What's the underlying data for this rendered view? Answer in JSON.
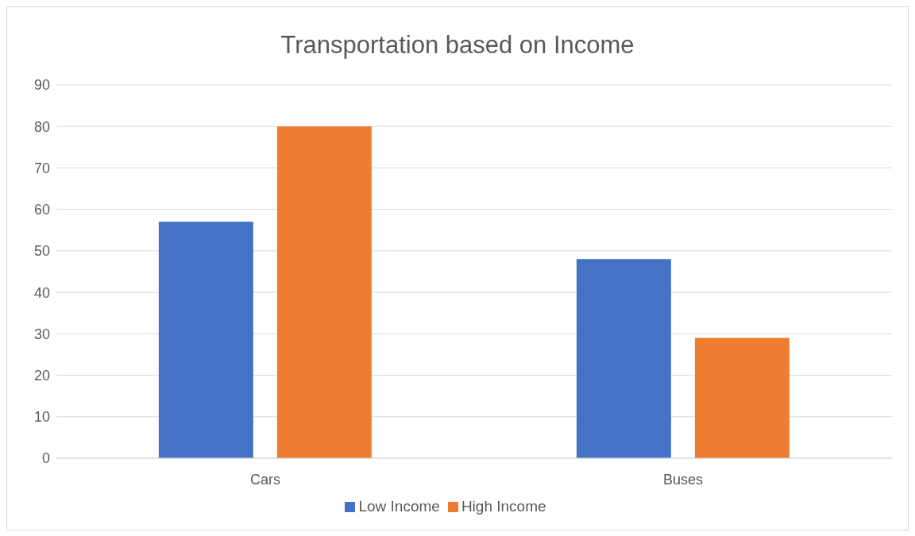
{
  "chart_data": {
    "type": "bar",
    "title": "Transportation based on Income",
    "categories": [
      "Cars",
      "Buses"
    ],
    "series": [
      {
        "name": "Low Income",
        "color": "#4472c4",
        "values": [
          57,
          48
        ]
      },
      {
        "name": "High Income",
        "color": "#ed7d31",
        "values": [
          80,
          29
        ]
      }
    ],
    "ylim": [
      0,
      90
    ],
    "yticks": [
      0,
      10,
      20,
      30,
      40,
      50,
      60,
      70,
      80,
      90
    ],
    "grid": "y",
    "legend": "bottom"
  }
}
